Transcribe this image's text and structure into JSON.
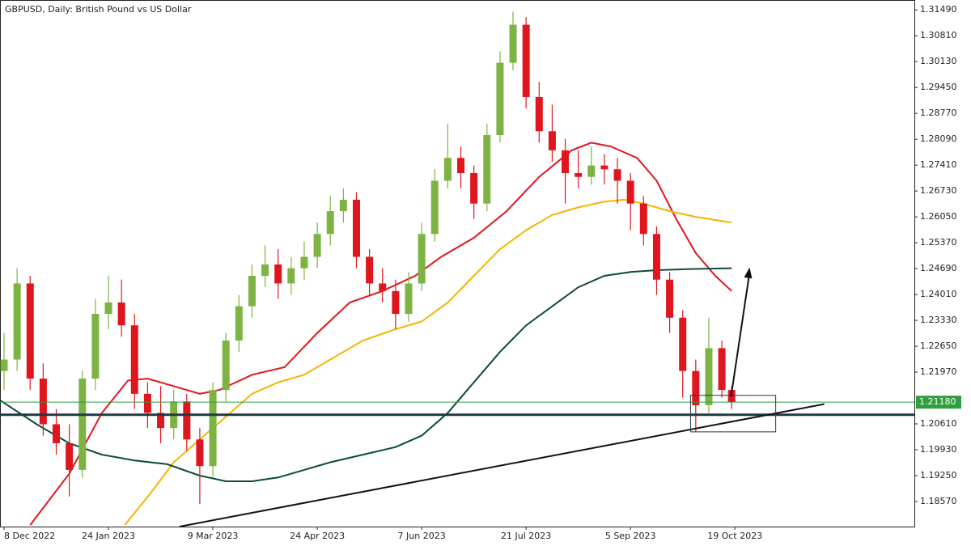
{
  "chart_data": {
    "type": "candlestick",
    "title": "GBPUSD, Daily:  British Pound vs US Dollar",
    "up_color": "#7cb342",
    "down_color": "#e0161f",
    "xlim": [
      -1.24,
      279
    ],
    "ylim": [
      1.1791,
      1.3175
    ],
    "xticks": [
      {
        "value": 0,
        "label": "8 Dec 2022"
      },
      {
        "value": 32,
        "label": "24 Jan 2023"
      },
      {
        "value": 64,
        "label": "9 Mar 2023"
      },
      {
        "value": 96,
        "label": "24 Apr 2023"
      },
      {
        "value": 128,
        "label": "7 Jun 2023"
      },
      {
        "value": 160,
        "label": "21 Jul 2023"
      },
      {
        "value": 192,
        "label": "5 Sep 2023"
      },
      {
        "value": 224,
        "label": "19 Oct 2023"
      }
    ],
    "yticks": [
      {
        "value": 1.3149,
        "label": "1.31490"
      },
      {
        "value": 1.3081,
        "label": "1.30810"
      },
      {
        "value": 1.3013,
        "label": "1.30130"
      },
      {
        "value": 1.2945,
        "label": "1.29450"
      },
      {
        "value": 1.2877,
        "label": "1.28770"
      },
      {
        "value": 1.2809,
        "label": "1.28090"
      },
      {
        "value": 1.2741,
        "label": "1.27410"
      },
      {
        "value": 1.2673,
        "label": "1.26730"
      },
      {
        "value": 1.2605,
        "label": "1.26050"
      },
      {
        "value": 1.2537,
        "label": "1.25370"
      },
      {
        "value": 1.2469,
        "label": "1.24690"
      },
      {
        "value": 1.2401,
        "label": "1.24010"
      },
      {
        "value": 1.2333,
        "label": "1.23330"
      },
      {
        "value": 1.2265,
        "label": "1.22650"
      },
      {
        "value": 1.2197,
        "label": "1.21970"
      },
      {
        "value": 1.2061,
        "label": "1.20610"
      },
      {
        "value": 1.1993,
        "label": "1.19930"
      },
      {
        "value": 1.1925,
        "label": "1.19250"
      },
      {
        "value": 1.1857,
        "label": "1.18570"
      }
    ],
    "candles": {
      "x": [
        0,
        4,
        8,
        12,
        16,
        20,
        24,
        28,
        32,
        36,
        40,
        44,
        48,
        52,
        56,
        60,
        64,
        68,
        72,
        76,
        80,
        84,
        88,
        92,
        96,
        100,
        104,
        108,
        112,
        116,
        120,
        124,
        128,
        132,
        136,
        140,
        144,
        148,
        152,
        156,
        160,
        164,
        168,
        172,
        176,
        180,
        184,
        188,
        192,
        196,
        200,
        204,
        208,
        212,
        216,
        220,
        223
      ],
      "open": [
        1.22,
        1.223,
        1.243,
        1.218,
        1.206,
        1.201,
        1.194,
        1.218,
        1.235,
        1.238,
        1.232,
        1.214,
        1.209,
        1.205,
        1.212,
        1.202,
        1.195,
        1.215,
        1.228,
        1.237,
        1.245,
        1.248,
        1.243,
        1.247,
        1.25,
        1.256,
        1.262,
        1.265,
        1.25,
        1.243,
        1.241,
        1.235,
        1.243,
        1.256,
        1.27,
        1.276,
        1.272,
        1.264,
        1.282,
        1.301,
        1.311,
        1.292,
        1.283,
        1.278,
        1.272,
        1.271,
        1.274,
        1.273,
        1.27,
        1.264,
        1.256,
        1.244,
        1.234,
        1.22,
        1.211,
        1.226,
        1.215
      ],
      "high": [
        1.23,
        1.247,
        1.245,
        1.222,
        1.21,
        1.206,
        1.22,
        1.239,
        1.245,
        1.244,
        1.235,
        1.217,
        1.216,
        1.215,
        1.214,
        1.205,
        1.217,
        1.23,
        1.24,
        1.248,
        1.253,
        1.252,
        1.25,
        1.254,
        1.259,
        1.266,
        1.268,
        1.267,
        1.252,
        1.247,
        1.244,
        1.246,
        1.259,
        1.273,
        1.285,
        1.279,
        1.274,
        1.285,
        1.304,
        1.3144,
        1.313,
        1.296,
        1.29,
        1.281,
        1.278,
        1.279,
        1.277,
        1.276,
        1.272,
        1.266,
        1.258,
        1.246,
        1.236,
        1.223,
        1.234,
        1.228,
        1.216
      ],
      "low": [
        1.215,
        1.22,
        1.215,
        1.203,
        1.198,
        1.187,
        1.192,
        1.215,
        1.231,
        1.229,
        1.21,
        1.205,
        1.201,
        1.202,
        1.199,
        1.185,
        1.192,
        1.212,
        1.225,
        1.234,
        1.242,
        1.239,
        1.24,
        1.244,
        1.247,
        1.253,
        1.259,
        1.247,
        1.24,
        1.238,
        1.231,
        1.233,
        1.241,
        1.254,
        1.268,
        1.268,
        1.26,
        1.262,
        1.28,
        1.299,
        1.289,
        1.28,
        1.275,
        1.264,
        1.268,
        1.269,
        1.269,
        1.264,
        1.257,
        1.253,
        1.24,
        1.23,
        1.213,
        1.204,
        1.209,
        1.213,
        1.21
      ],
      "close": [
        1.223,
        1.243,
        1.218,
        1.206,
        1.201,
        1.194,
        1.218,
        1.235,
        1.238,
        1.232,
        1.214,
        1.209,
        1.205,
        1.212,
        1.202,
        1.195,
        1.215,
        1.228,
        1.237,
        1.245,
        1.248,
        1.243,
        1.247,
        1.25,
        1.256,
        1.262,
        1.265,
        1.25,
        1.243,
        1.241,
        1.235,
        1.243,
        1.256,
        1.27,
        1.276,
        1.272,
        1.264,
        1.282,
        1.301,
        1.311,
        1.292,
        1.283,
        1.278,
        1.272,
        1.271,
        1.274,
        1.273,
        1.27,
        1.264,
        1.256,
        1.244,
        1.234,
        1.22,
        1.211,
        1.226,
        1.215,
        1.2118
      ]
    },
    "lines": [
      {
        "color": "#e0161f",
        "x": [
          8,
          20,
          30,
          38,
          44,
          52,
          60,
          66,
          76,
          86,
          96,
          106,
          116,
          126,
          134,
          144,
          154,
          164,
          174,
          180,
          186,
          194,
          200,
          206,
          212,
          218,
          223
        ],
        "values": [
          1.1795,
          1.193,
          1.209,
          1.2175,
          1.218,
          1.216,
          1.214,
          1.215,
          1.219,
          1.221,
          1.23,
          1.238,
          1.241,
          1.245,
          1.25,
          1.255,
          1.262,
          1.271,
          1.278,
          1.28,
          1.279,
          1.276,
          1.27,
          1.26,
          1.251,
          1.245,
          1.241
        ]
      },
      {
        "color": "#f5b400",
        "x": [
          37,
          45,
          52,
          60,
          68,
          76,
          84,
          92,
          100,
          110,
          120,
          128,
          136,
          144,
          152,
          160,
          168,
          176,
          184,
          190,
          196,
          204,
          212,
          223
        ],
        "values": [
          1.1795,
          1.188,
          1.196,
          1.202,
          1.208,
          1.214,
          1.217,
          1.219,
          1.223,
          1.228,
          1.231,
          1.233,
          1.238,
          1.245,
          1.252,
          1.257,
          1.261,
          1.263,
          1.2645,
          1.265,
          1.264,
          1.262,
          1.2605,
          1.259
        ]
      },
      {
        "color": "#0d4a3a",
        "x": [
          -1.24,
          10,
          20,
          30,
          40,
          50,
          60,
          68,
          76,
          84,
          92,
          100,
          110,
          120,
          128,
          136,
          144,
          152,
          160,
          168,
          176,
          184,
          192,
          200,
          210,
          223
        ],
        "values": [
          1.2123,
          1.206,
          1.201,
          1.198,
          1.1965,
          1.1955,
          1.1925,
          1.191,
          1.191,
          1.192,
          1.194,
          1.196,
          1.198,
          1.2,
          1.203,
          1.209,
          1.217,
          1.225,
          1.232,
          1.237,
          1.242,
          1.245,
          1.246,
          1.2465,
          1.2468,
          1.247
        ]
      }
    ],
    "support_level": 1.2085,
    "last_price": {
      "value": 1.2118,
      "label": "1.21180"
    },
    "trendline": {
      "x": [
        53.8,
        251.4
      ],
      "values": [
        1.1791,
        1.2113
      ]
    },
    "arrow": {
      "x": [
        222.8,
        228.5
      ],
      "values": [
        1.2132,
        1.2472
      ]
    },
    "zone": {
      "x": [
        210.4,
        236.5
      ],
      "values": [
        1.2136,
        1.204
      ]
    }
  }
}
